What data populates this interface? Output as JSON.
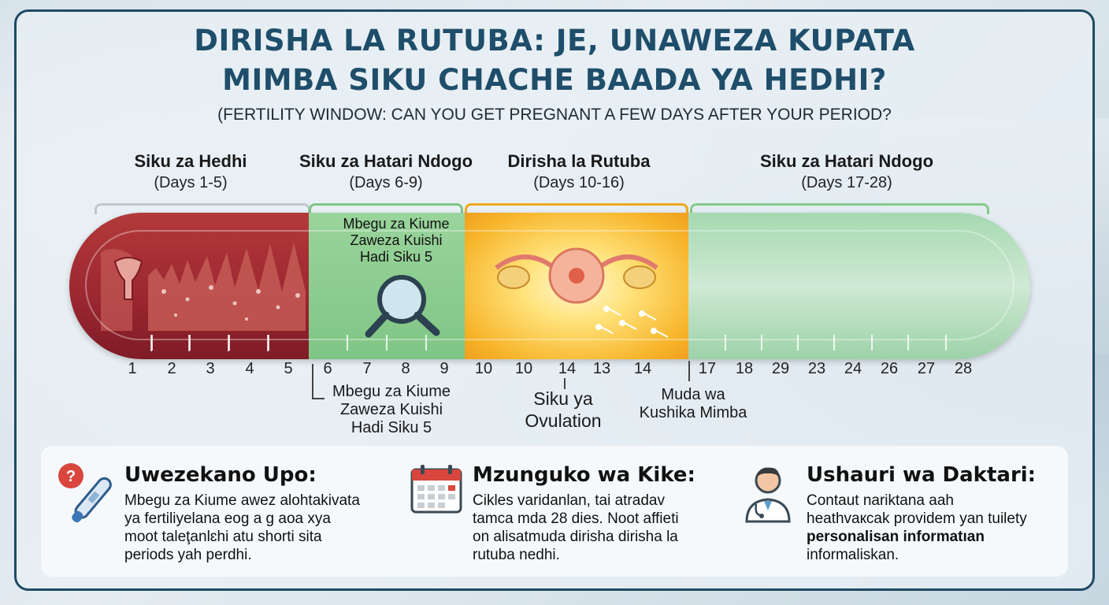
{
  "title_lines": [
    "DIRISHA LA RUTUBA: JE, UNAWEZA KUPATA",
    "MIMBA SIKU CHACHE BAADA YA HEDHI?"
  ],
  "subtitle": "(FERTILITY WINDOW: CAN YOU GET PREGNANT A FEW DAYS AFTER YOUR PERIOD?",
  "phases": [
    {
      "name": "Siku za Hedhi",
      "days": "(Days 1-5)"
    },
    {
      "name": "Siku za Hatari Ndogo",
      "days": "(Days 6-9)"
    },
    {
      "name": "Dirisha la Rutuba",
      "days": "(Days 10-16)"
    },
    {
      "name": "Siku za Hatari Ndogo",
      "days": "(Days 17-28)"
    }
  ],
  "inside_note": [
    "Mbegu za Kiume",
    "Zaweza Kuishi",
    "Hadi Siku 5"
  ],
  "day_numbers": [
    "1",
    "2",
    "3",
    "4",
    "5",
    "6",
    "7",
    "8",
    "9",
    "10",
    "10",
    "14",
    "13",
    "14",
    "17",
    "18",
    "29",
    "23",
    "24",
    "26",
    "27",
    "28"
  ],
  "below_notes": {
    "sperm": [
      "Mbegu za Kiume",
      "Zaweza Kuishi",
      "Hadi Siku 5"
    ],
    "ovulation": [
      "Siku ya",
      "Ovulation"
    ],
    "conception": [
      "Muda wa",
      "Kushika Mimba"
    ]
  },
  "cards": [
    {
      "icon": "question-pregnancy-test-icon",
      "title": "Uwezekano Upo:",
      "lines": [
        "Mbegu za Kiume awez alohtakivata",
        "ya fertiliyelana eog a g aoa xya",
        "moot taleţanlɛhi atu shorti sita",
        "periods yah perdhi."
      ]
    },
    {
      "icon": "calendar-icon",
      "title": "Mzunguko wa Kike:",
      "lines": [
        "Cikles varidanlan, tai atradav",
        "tamca mda 28 dies. Noot affieti",
        "on alisatmuda dirisha dirisha la",
        "rutuba nedhi."
      ]
    },
    {
      "icon": "doctor-icon",
      "title": "Ushauri wa Daktari:",
      "lines": [
        "Contaut nariktana aah",
        "heathvaкcak providem yan tuilety",
        "personalisan informatıan",
        "informaliskan."
      ]
    }
  ],
  "colors": {
    "frame": "#1f4a63",
    "title": "#1f4e6b",
    "menstrual": "#9a2630",
    "low_risk": "#86c98b",
    "fertile": "#f7b42a",
    "bracket_fertile": "#f0a820"
  }
}
